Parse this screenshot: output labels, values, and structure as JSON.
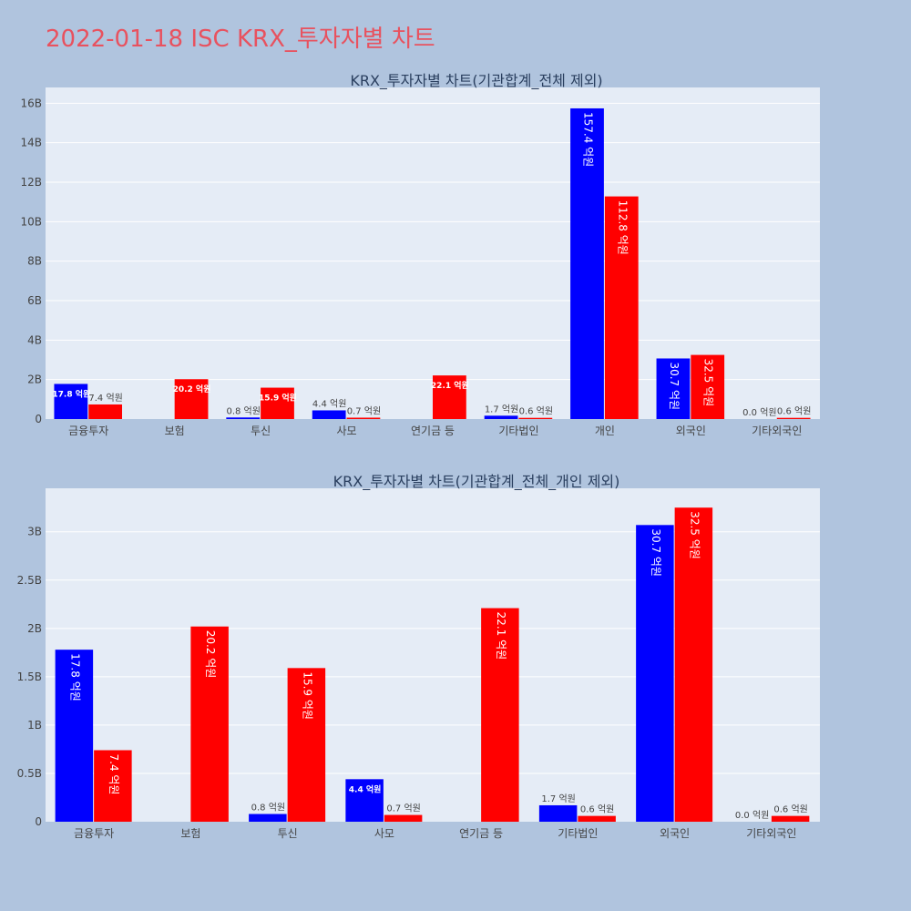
{
  "page": {
    "title": "2022-01-18 ISC KRX_투자자별 차트",
    "colors": {
      "background": "#b0c4de",
      "plot_bg": "#e5ecf6",
      "title": "#e8525f",
      "buy": "#0000ff",
      "sell": "#ff0000",
      "axis_text": "#444444",
      "grid": "#ffffff"
    }
  },
  "chart_data": [
    {
      "type": "bar",
      "title": "KRX_투자자별 차트(기관합계_전체 제외)",
      "categories": [
        "금융투자",
        "보험",
        "투신",
        "사모",
        "연기금 등",
        "기타법인",
        "개인",
        "외국인",
        "기타외국인"
      ],
      "series": [
        {
          "color": "#0000ff",
          "values": [
            1.78,
            0,
            0.08,
            0.44,
            0,
            0.17,
            15.74,
            3.07,
            0.0
          ],
          "labels": [
            "17.8 억원",
            "",
            "0.8 억원",
            "4.4 억원",
            "",
            "1.7 억원",
            "157.4 억원",
            "30.7 억원",
            "0.0 억원"
          ]
        },
        {
          "color": "#ff0000",
          "values": [
            0.74,
            2.02,
            1.59,
            0.07,
            2.21,
            0.06,
            11.28,
            3.25,
            0.06
          ],
          "labels": [
            "7.4 억원",
            "20.2 억원",
            "15.9 억원",
            "0.7 억원",
            "22.1 억원",
            "0.6 억원",
            "112.8 억원",
            "32.5 억원",
            "0.6 억원"
          ]
        }
      ],
      "ylim": [
        0,
        16.8
      ],
      "yticks": [
        0,
        2,
        4,
        6,
        8,
        10,
        12,
        14,
        16
      ],
      "ytick_labels": [
        "0",
        "2B",
        "4B",
        "6B",
        "8B",
        "10B",
        "12B",
        "14B",
        "16B"
      ],
      "grid": true
    },
    {
      "type": "bar",
      "title": "KRX_투자자별 차트(기관합계_전체_개인 제외)",
      "categories": [
        "금융투자",
        "보험",
        "투신",
        "사모",
        "연기금 등",
        "기타법인",
        "외국인",
        "기타외국인"
      ],
      "series": [
        {
          "color": "#0000ff",
          "values": [
            1.78,
            0,
            0.08,
            0.44,
            0,
            0.17,
            3.07,
            0.0
          ],
          "labels": [
            "17.8 억원",
            "",
            "0.8 억원",
            "4.4 억원",
            "",
            "1.7 억원",
            "30.7 억원",
            "0.0 억원"
          ]
        },
        {
          "color": "#ff0000",
          "values": [
            0.74,
            2.02,
            1.59,
            0.07,
            2.21,
            0.06,
            3.25,
            0.06
          ],
          "labels": [
            "7.4 억원",
            "20.2 억원",
            "15.9 억원",
            "0.7 억원",
            "22.1 억원",
            "0.6 억원",
            "32.5 억원",
            "0.6 억원"
          ]
        }
      ],
      "ylim": [
        0,
        3.45
      ],
      "yticks": [
        0,
        0.5,
        1,
        1.5,
        2,
        2.5,
        3
      ],
      "ytick_labels": [
        "0",
        "0.5B",
        "1B",
        "1.5B",
        "2B",
        "2.5B",
        "3B"
      ],
      "grid": true
    }
  ]
}
